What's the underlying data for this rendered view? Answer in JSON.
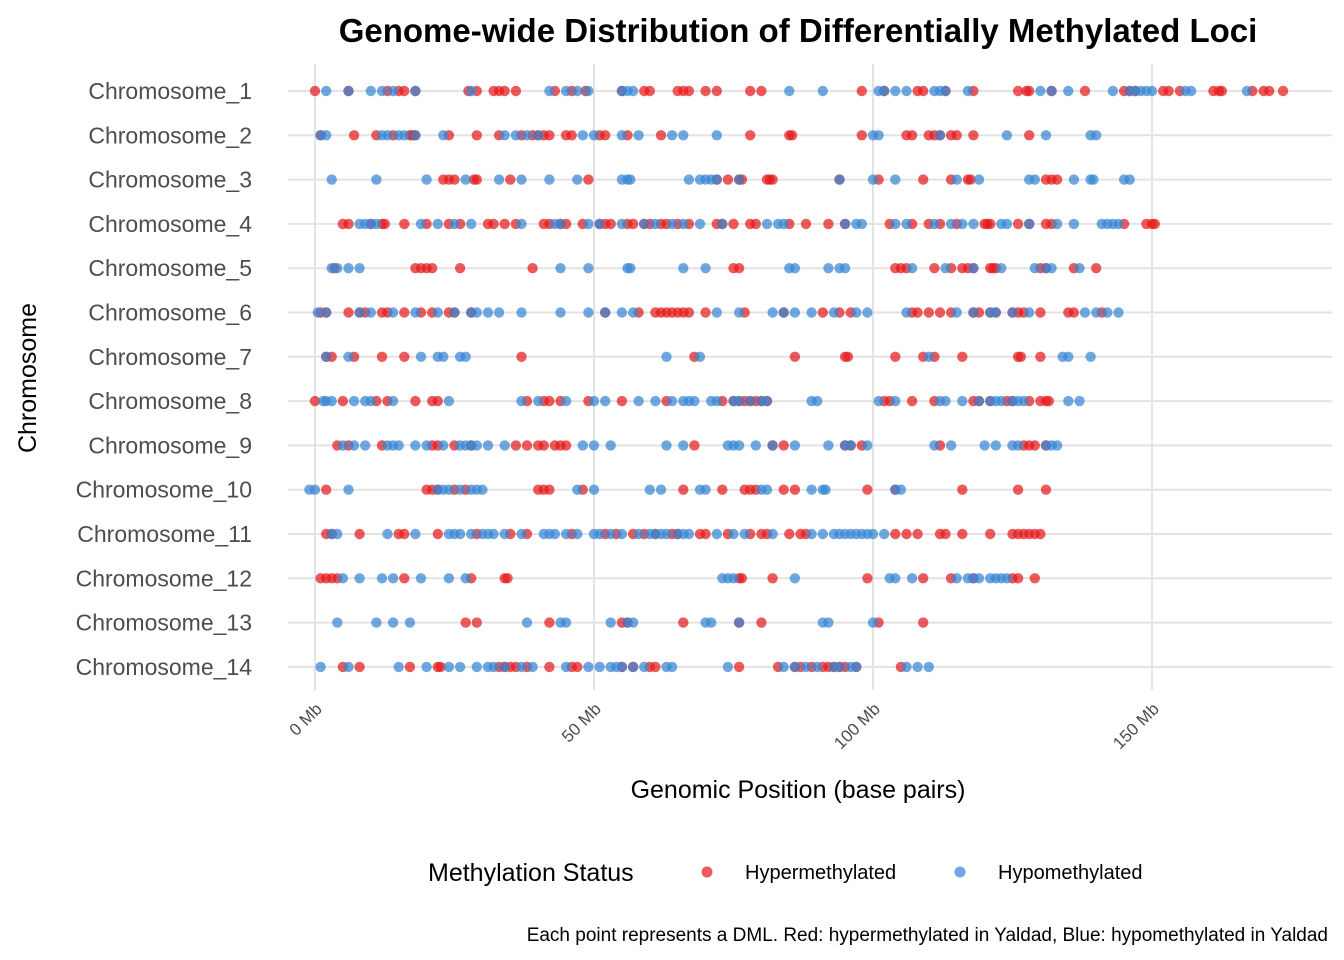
{
  "chart_data": {
    "type": "scatter",
    "title": "Genome-wide Distribution of Differentially Methylated Loci",
    "xlabel": "Genomic Position (base pairs)",
    "ylabel": "Chromosome",
    "caption": "Each point represents a DML. Red: hypermethylated in Yaldad, Blue: hypomethylated in Yaldad",
    "xlim": [
      -3,
      182
    ],
    "x_ticks": [
      {
        "value": 0,
        "label": "0 Mb"
      },
      {
        "value": 50,
        "label": "50 Mb"
      },
      {
        "value": 100,
        "label": "100 Mb"
      },
      {
        "value": 150,
        "label": "150 Mb"
      }
    ],
    "x_unit": "Mb",
    "categories": [
      "Chromosome_1",
      "Chromosome_2",
      "Chromosome_3",
      "Chromosome_4",
      "Chromosome_5",
      "Chromosome_6",
      "Chromosome_7",
      "Chromosome_8",
      "Chromosome_9",
      "Chromosome_10",
      "Chromosome_11",
      "Chromosome_12",
      "Chromosome_13",
      "Chromosome_14"
    ],
    "grid": true,
    "legend": {
      "title": "Methylation Status",
      "position": "bottom"
    },
    "series": [
      {
        "name": "Hypermethylated",
        "color": "#E41A1C",
        "points": {
          "Chromosome_1": [
            0,
            6,
            13,
            15,
            16,
            18,
            27.5,
            29,
            32,
            33,
            34,
            36,
            43,
            46,
            48.5,
            55,
            59,
            60,
            65,
            66,
            67,
            70,
            72,
            78,
            80,
            98,
            102,
            108,
            109,
            113,
            118,
            126,
            127.5,
            128,
            132,
            138,
            145,
            146,
            147,
            152,
            153,
            155,
            161,
            162,
            162.5,
            168,
            170,
            171,
            173.5
          ],
          "Chromosome_2": [
            1,
            7,
            11,
            14,
            17,
            17.5,
            18,
            24,
            29,
            33,
            37,
            39,
            40,
            41,
            42,
            45,
            46,
            51,
            52,
            56,
            62,
            78,
            85,
            85.5,
            98,
            106,
            107,
            110,
            111,
            112,
            114,
            115,
            118,
            128
          ],
          "Chromosome_3": [
            23,
            24,
            25,
            28.5,
            29,
            35,
            49,
            72,
            74,
            76,
            76.5,
            81,
            81.5,
            82,
            94,
            101,
            109,
            114,
            117,
            117.5,
            131,
            132,
            133
          ],
          "Chromosome_4": [
            5,
            6,
            10,
            12,
            12.5,
            16,
            20,
            24,
            26,
            31,
            32,
            34,
            36,
            41,
            42,
            44,
            45,
            48,
            51,
            52,
            53,
            56,
            57,
            59,
            60,
            62,
            63,
            65,
            67,
            72,
            73,
            75,
            78,
            79,
            85,
            88,
            92,
            95,
            103,
            107,
            110,
            112,
            115,
            120,
            120.5,
            121,
            126,
            128,
            131,
            132,
            145,
            149,
            150,
            150.5
          ],
          "Chromosome_5": [
            3.5,
            18,
            19,
            20,
            21,
            26,
            39,
            75,
            76,
            104,
            105,
            106,
            111,
            114,
            116,
            117,
            118,
            121,
            121.5,
            122,
            130,
            131,
            136,
            140
          ],
          "Chromosome_6": [
            1,
            2,
            6,
            8,
            9,
            12,
            13,
            16,
            19,
            21,
            24,
            25,
            28,
            52,
            58,
            61,
            62,
            63,
            64,
            65,
            66,
            67,
            70,
            77,
            84,
            91,
            94,
            96,
            107,
            108,
            110,
            112,
            114,
            118,
            119,
            121,
            122,
            125,
            126,
            127,
            130,
            135,
            136,
            141
          ],
          "Chromosome_7": [
            2,
            3,
            7,
            12,
            16,
            37,
            68,
            86,
            95,
            95.5,
            104,
            109,
            111,
            116,
            126,
            126.5,
            130
          ],
          "Chromosome_8": [
            0,
            5,
            11,
            13,
            18,
            21,
            22,
            38,
            41,
            42,
            44,
            49,
            55,
            63,
            73,
            75,
            76,
            77,
            78,
            79,
            80,
            81,
            102,
            103,
            107,
            111,
            118,
            119,
            121,
            124,
            125,
            128,
            130,
            131,
            131.5
          ],
          "Chromosome_9": [
            4,
            6,
            12,
            21,
            22,
            25,
            28,
            36,
            38,
            40,
            41,
            43,
            44,
            45,
            68,
            82,
            84,
            95,
            96,
            98,
            112,
            127,
            128,
            129,
            131
          ],
          "Chromosome_10": [
            2,
            20,
            21,
            22,
            25,
            27,
            40,
            41,
            42,
            48,
            66,
            73,
            77,
            78,
            79,
            84,
            86,
            99,
            104,
            116,
            126,
            131
          ],
          "Chromosome_11": [
            2,
            3,
            8,
            15,
            16,
            22,
            29,
            35,
            38,
            46,
            52,
            54,
            57,
            59,
            61,
            64,
            65,
            69,
            70,
            74,
            78,
            80,
            81,
            85,
            87,
            88,
            104,
            106,
            108,
            112,
            113,
            116,
            121,
            125,
            126,
            127,
            128,
            129,
            130
          ],
          "Chromosome_12": [
            1,
            2,
            3,
            4,
            16,
            28,
            34,
            34.5,
            76,
            76.5,
            82,
            99,
            109,
            114,
            118,
            125,
            126,
            129
          ],
          "Chromosome_13": [
            27,
            29,
            42,
            55,
            56,
            66,
            76,
            80,
            101,
            109
          ],
          "Chromosome_14": [
            5,
            8,
            17,
            22,
            22.5,
            33,
            34,
            35,
            36,
            38,
            42,
            46,
            47,
            55,
            57,
            60,
            61,
            76,
            83,
            86,
            87,
            89,
            91,
            92,
            93,
            94,
            95,
            97,
            105
          ]
        }
      },
      {
        "name": "Hypomethylated",
        "color": "#3787D4",
        "points": {
          "Chromosome_1": [
            2,
            6,
            10,
            12,
            14,
            18,
            28,
            42,
            45,
            47,
            49,
            55,
            56,
            57,
            85,
            91,
            101,
            102,
            104,
            106,
            111,
            112,
            113,
            117,
            130,
            132,
            135,
            143,
            146,
            147,
            148,
            149,
            150,
            156,
            157,
            167
          ],
          "Chromosome_2": [
            1,
            2,
            12,
            13,
            15,
            16,
            18,
            23,
            34,
            36,
            38,
            40,
            48,
            50,
            55,
            58,
            64,
            66,
            72,
            100,
            101,
            112,
            124,
            131,
            139,
            140
          ],
          "Chromosome_3": [
            3,
            11,
            20,
            27,
            33,
            37,
            42,
            47,
            55,
            56,
            56.5,
            67,
            69,
            70,
            71,
            72,
            76,
            94,
            100,
            104,
            115,
            119,
            128,
            129,
            136,
            139,
            139.5,
            145,
            146
          ],
          "Chromosome_4": [
            8,
            9,
            10,
            11,
            19,
            22,
            25,
            28,
            37,
            43,
            44,
            49,
            51,
            55,
            59,
            61,
            64,
            66,
            69,
            73,
            81,
            83,
            84,
            95,
            97,
            98,
            104,
            106,
            111,
            114,
            116,
            118,
            123,
            124,
            128,
            133,
            136,
            141,
            142,
            143,
            144
          ],
          "Chromosome_5": [
            3,
            4,
            6,
            8,
            44,
            49,
            56,
            56.5,
            66,
            70,
            85,
            86,
            92,
            94,
            95,
            107,
            113,
            118,
            123,
            129,
            131,
            132,
            137
          ],
          "Chromosome_6": [
            0.5,
            2,
            8,
            10,
            14,
            18,
            22,
            25,
            28,
            29,
            31,
            33,
            37,
            44,
            49,
            52,
            55,
            57,
            72,
            76,
            82,
            84,
            86,
            89,
            93,
            97,
            99,
            106,
            115,
            118,
            121,
            122,
            125,
            128,
            138,
            140,
            142,
            144
          ],
          "Chromosome_7": [
            2,
            6,
            19,
            22,
            23,
            26,
            27,
            63,
            69,
            110,
            134,
            135,
            139
          ],
          "Chromosome_8": [
            1.5,
            2,
            3,
            7,
            9,
            10,
            14,
            24,
            37,
            40,
            45,
            50,
            52,
            58,
            61,
            64,
            66,
            67,
            68,
            71,
            72,
            75,
            76,
            78,
            80,
            81,
            89,
            90,
            101,
            104,
            112,
            113,
            116,
            119,
            121,
            122,
            123,
            125,
            126,
            127,
            135,
            137
          ],
          "Chromosome_9": [
            5,
            7,
            9,
            13,
            14,
            15,
            18,
            20,
            23,
            26,
            27,
            28,
            29,
            31,
            34,
            48,
            50,
            53,
            63,
            66,
            74,
            75,
            76,
            79,
            82,
            86,
            92,
            95,
            96,
            99,
            111,
            114,
            120,
            122,
            125,
            126,
            131,
            132,
            133
          ],
          "Chromosome_10": [
            -1,
            0,
            6,
            22,
            23,
            24,
            26,
            28,
            29,
            30,
            47,
            50,
            60,
            62,
            69,
            70,
            80,
            81,
            89,
            91,
            91.5,
            104,
            105
          ],
          "Chromosome_11": [
            3,
            4,
            13,
            18,
            24,
            25,
            26,
            28,
            30,
            31,
            32,
            34,
            37,
            41,
            42,
            43,
            45,
            47,
            50,
            51,
            53,
            55,
            58,
            60,
            61,
            62,
            63,
            65,
            66,
            67,
            72,
            75,
            77,
            82,
            89,
            91,
            93,
            94,
            95,
            96,
            97,
            98,
            99,
            100,
            102
          ],
          "Chromosome_12": [
            5,
            8,
            12,
            14,
            19,
            24,
            27,
            73,
            74,
            75,
            86,
            103,
            104,
            107,
            115,
            117,
            118,
            119,
            121,
            122,
            123,
            124
          ],
          "Chromosome_13": [
            4,
            11,
            14,
            17,
            38,
            44,
            45,
            53,
            56,
            57,
            70,
            71,
            76,
            91,
            92,
            100
          ],
          "Chromosome_14": [
            1,
            6,
            15,
            20,
            24,
            26,
            29,
            31,
            32,
            34,
            37,
            39,
            45,
            49,
            51,
            53,
            54,
            55,
            57,
            59,
            63,
            64,
            74,
            84,
            86,
            88,
            90,
            93,
            94,
            96,
            97,
            106,
            108,
            110
          ]
        }
      }
    ]
  }
}
